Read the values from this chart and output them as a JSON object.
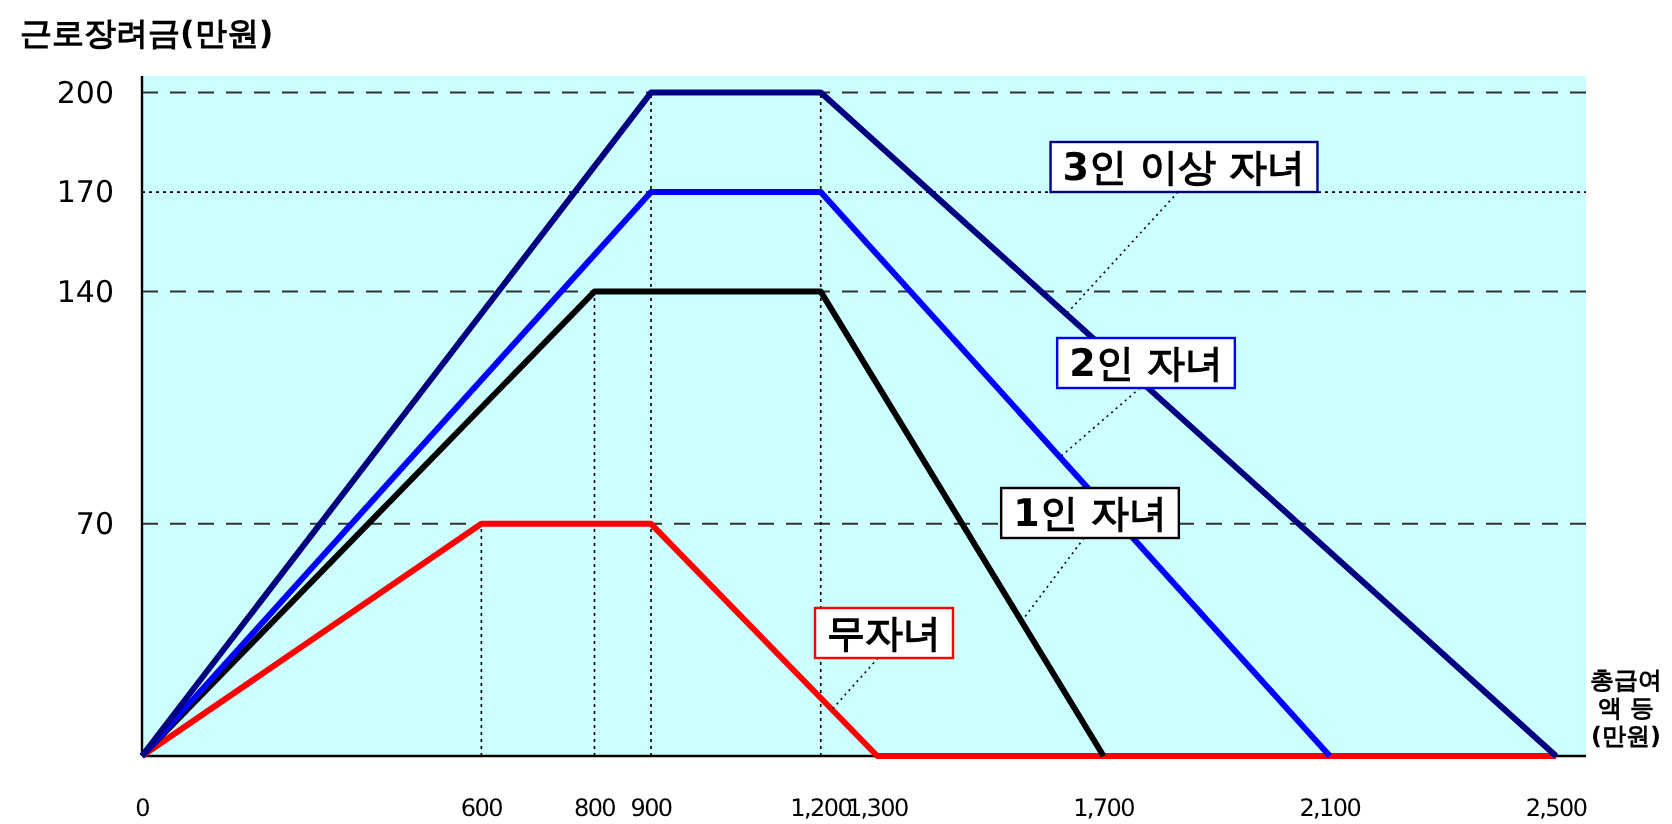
{
  "chart_data": {
    "type": "line",
    "ylabel": "근로장려금(만원)",
    "xlabel": "총급여액 등 (만원)",
    "xlim": [
      0,
      2553
    ],
    "ylim": [
      0,
      205
    ],
    "xticks": [
      0,
      600,
      800,
      900,
      {
        "value": 1200,
        "label": "1,200"
      },
      {
        "value": 1300,
        "label": "1,300"
      },
      {
        "value": 1700,
        "label": "1,700"
      },
      {
        "value": 2100,
        "label": "2,100"
      },
      {
        "value": 2500,
        "label": "2,500"
      }
    ],
    "yticks": [
      70,
      140,
      170,
      200
    ],
    "marker": "none",
    "line_style": "solid",
    "ref_lines": [
      {
        "axis": "y",
        "value": 200,
        "line_style": "dashed"
      },
      {
        "axis": "y",
        "value": 170,
        "line_style": "dotted"
      },
      {
        "axis": "y",
        "value": 140,
        "line_style": "dashed"
      },
      {
        "axis": "y",
        "value": 70,
        "line_style": "dashed"
      },
      {
        "axis": "x",
        "value": 600,
        "line_style": "dotted"
      },
      {
        "axis": "x",
        "value": 800,
        "line_style": "dotted"
      },
      {
        "axis": "x",
        "value": 900,
        "line_style": "dotted"
      },
      {
        "axis": "x",
        "value": 1200,
        "line_style": "dotted"
      }
    ],
    "series": [
      {
        "name": "무자녀",
        "color": "#ff0000",
        "x": [
          0,
          600,
          900,
          1300,
          2500
        ],
        "values": [
          0,
          70,
          70,
          0,
          0
        ]
      },
      {
        "name": "1인 자녀",
        "color": "#000000",
        "x": [
          0,
          800,
          1200,
          1700
        ],
        "values": [
          0,
          140,
          140,
          0
        ]
      },
      {
        "name": "2인 자녀",
        "color": "#0000ff",
        "x": [
          0,
          900,
          1200,
          2100
        ],
        "values": [
          0,
          170,
          170,
          0
        ]
      },
      {
        "name": "3인 이상 자녀",
        "color": "#000080",
        "x": [
          0,
          900,
          1200,
          2500
        ],
        "values": [
          0,
          200,
          200,
          0
        ]
      }
    ]
  }
}
